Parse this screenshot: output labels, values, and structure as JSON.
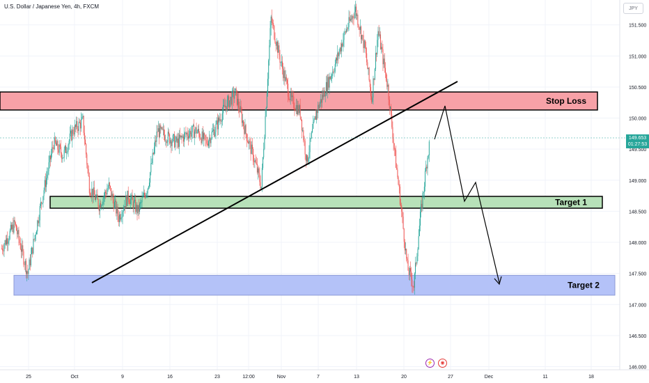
{
  "header": {
    "title": "U.S. Dollar / Japanese Yen, 4h, FXCM",
    "currency": "JPY"
  },
  "price_tag": {
    "price": "149.653",
    "countdown": "01:27:53"
  },
  "zones": [
    {
      "label": "Stop Loss",
      "color": "#f7a1a7",
      "top": 150.42,
      "bottom": 150.13
    },
    {
      "label": "Target 1",
      "color": "#b7e1b9",
      "top": 148.74,
      "bottom": 148.55
    },
    {
      "label": "Target 2",
      "color": "#b4c2f8",
      "top": 147.47,
      "bottom": 147.15
    }
  ],
  "icons": {
    "event_1": "lightning-icon",
    "event_2": "target-icon"
  },
  "colors": {
    "up": "#26a69a",
    "down": "#ef5350"
  },
  "chart_data": {
    "type": "candlestick",
    "title": "U.S. Dollar / Japanese Yen, 4h, FXCM",
    "y_ticks": [
      "151.500",
      "151.000",
      "150.500",
      "150.000",
      "149.500",
      "149.000",
      "148.500",
      "148.000",
      "147.500",
      "147.000",
      "146.500",
      "146.000"
    ],
    "y_tick_values": [
      151.5,
      151.0,
      150.5,
      150.0,
      149.5,
      149.0,
      148.5,
      148.0,
      147.5,
      147.0,
      146.5,
      146.0
    ],
    "x_ticks": [
      "25",
      "Oct",
      "9",
      "16",
      "23",
      "12:00",
      "Nov",
      "7",
      "13",
      "20",
      "27",
      "Dec",
      "11",
      "18"
    ],
    "ylim": [
      145.95,
      151.9
    ],
    "last_price": 149.653,
    "close_path": [
      [
        0,
        147.9
      ],
      [
        4,
        148.3
      ],
      [
        8,
        147.5
      ],
      [
        12,
        148.6
      ],
      [
        16,
        149.6
      ],
      [
        19,
        149.4
      ],
      [
        22,
        149.8
      ],
      [
        25,
        149.95
      ],
      [
        27,
        148.9
      ],
      [
        30,
        148.6
      ],
      [
        33,
        148.9
      ],
      [
        36,
        148.4
      ],
      [
        39,
        148.75
      ],
      [
        42,
        148.5
      ],
      [
        45,
        148.9
      ],
      [
        48,
        149.8
      ],
      [
        51,
        149.7
      ],
      [
        54,
        149.6
      ],
      [
        57,
        149.75
      ],
      [
        60,
        149.8
      ],
      [
        63,
        149.6
      ],
      [
        66,
        149.85
      ],
      [
        69,
        150.2
      ],
      [
        72,
        150.4
      ],
      [
        75,
        149.8
      ],
      [
        78,
        149.3
      ],
      [
        80,
        148.9
      ],
      [
        83,
        151.6
      ],
      [
        86,
        150.9
      ],
      [
        89,
        150.3
      ],
      [
        92,
        150.1
      ],
      [
        94,
        149.3
      ],
      [
        97,
        150.1
      ],
      [
        100,
        150.5
      ],
      [
        103,
        150.9
      ],
      [
        106,
        151.4
      ],
      [
        109,
        151.75
      ],
      [
        112,
        151.1
      ],
      [
        114,
        150.3
      ],
      [
        116,
        151.4
      ],
      [
        119,
        150.5
      ],
      [
        121,
        149.5
      ],
      [
        123,
        148.6
      ],
      [
        125,
        147.6
      ],
      [
        127,
        147.3
      ],
      [
        129,
        148.4
      ],
      [
        131,
        149.3
      ],
      [
        132,
        149.65
      ]
    ]
  }
}
